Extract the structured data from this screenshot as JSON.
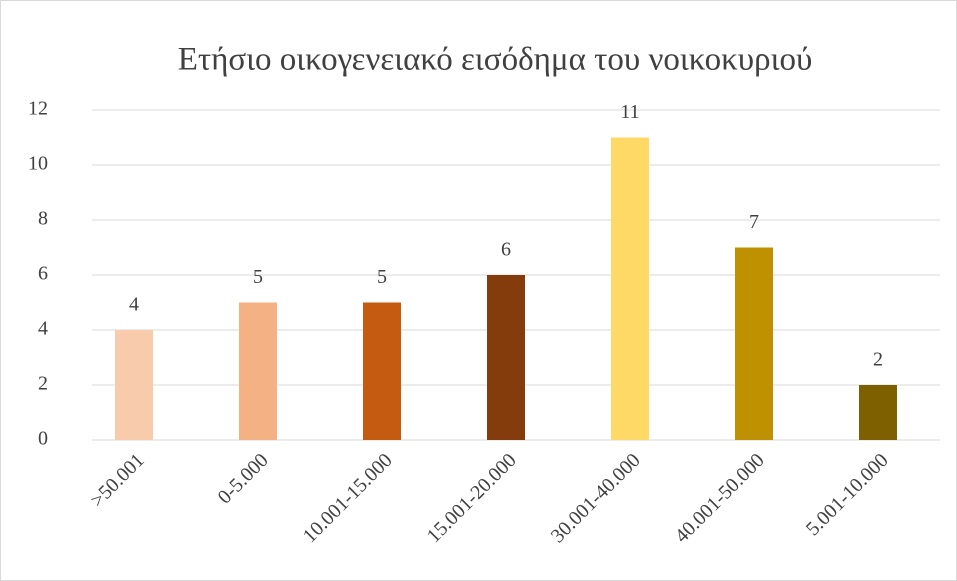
{
  "chart_data": {
    "type": "bar",
    "title": "Ετήσιο οικογενειακό εισόδημα του νοικοκυριού",
    "categories": [
      ">50.001",
      "0-5.000",
      "10.001-15.000",
      "15.001-20.000",
      "30.001-40.000",
      "40.001-50.000",
      "5.001-10.000"
    ],
    "values": [
      4,
      5,
      5,
      6,
      11,
      7,
      2
    ],
    "colors": [
      "#f8cbad",
      "#f4b183",
      "#c55a11",
      "#843c0c",
      "#ffd966",
      "#bf9000",
      "#7f6000"
    ],
    "ylim": [
      0,
      12
    ],
    "yticks": [
      0,
      2,
      4,
      6,
      8,
      10,
      12
    ],
    "grid": true
  }
}
